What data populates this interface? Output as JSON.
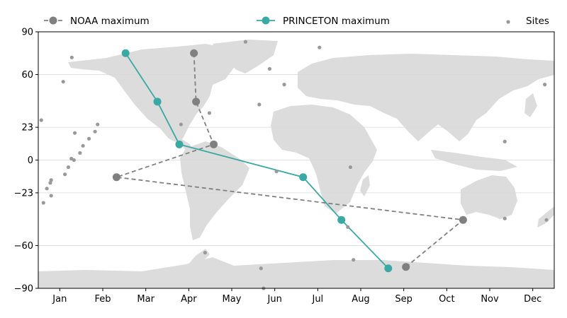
{
  "chart_data": {
    "type": "line",
    "xlim": [
      0,
      12
    ],
    "ylim": [
      -90,
      90
    ],
    "x_ticks": [
      {
        "value": 0.5,
        "label": "Jan"
      },
      {
        "value": 1.5,
        "label": "Feb"
      },
      {
        "value": 2.5,
        "label": "Mar"
      },
      {
        "value": 3.5,
        "label": "Apr"
      },
      {
        "value": 4.5,
        "label": "May"
      },
      {
        "value": 5.5,
        "label": "Jun"
      },
      {
        "value": 6.5,
        "label": "Jul"
      },
      {
        "value": 7.5,
        "label": "Aug"
      },
      {
        "value": 8.5,
        "label": "Sep"
      },
      {
        "value": 9.5,
        "label": "Oct"
      },
      {
        "value": 10.5,
        "label": "Nov"
      },
      {
        "value": 11.5,
        "label": "Dec"
      }
    ],
    "y_ticks": [
      {
        "value": 90,
        "label": "90"
      },
      {
        "value": 60,
        "label": "60"
      },
      {
        "value": 23,
        "label": "23"
      },
      {
        "value": 0,
        "label": "0"
      },
      {
        "value": -23,
        "label": "−23"
      },
      {
        "value": -60,
        "label": "−60"
      },
      {
        "value": -90,
        "label": "−90"
      }
    ],
    "grid": {
      "y": true,
      "x": false
    },
    "background": "world map (land masses in light gray)",
    "legend": {
      "placement": "top"
    },
    "series": [
      {
        "name": "NOAA maximum",
        "color": "#808080",
        "style": "dashed",
        "marker": "circle",
        "points": [
          {
            "x": 3.62,
            "y": 75
          },
          {
            "x": 3.67,
            "y": 41
          },
          {
            "x": 4.08,
            "y": 11
          },
          {
            "x": 1.82,
            "y": -12
          },
          {
            "x": 9.88,
            "y": -42
          },
          {
            "x": 8.55,
            "y": -75
          }
        ]
      },
      {
        "name": "PRINCETON maximum",
        "color": "#3aa8a3",
        "style": "solid",
        "marker": "circle",
        "points": [
          {
            "x": 2.03,
            "y": 75
          },
          {
            "x": 2.77,
            "y": 41
          },
          {
            "x": 3.28,
            "y": 11
          },
          {
            "x": 6.16,
            "y": -12
          },
          {
            "x": 7.05,
            "y": -42
          },
          {
            "x": 8.14,
            "y": -76
          }
        ]
      },
      {
        "name": "Sites",
        "color": "#999999",
        "style": "scatter",
        "marker": "dot",
        "points": [
          {
            "x": 0.78,
            "y": 72
          },
          {
            "x": 0.58,
            "y": 55
          },
          {
            "x": 0.07,
            "y": 28
          },
          {
            "x": 0.85,
            "y": 19
          },
          {
            "x": 1.38,
            "y": 25
          },
          {
            "x": 1.32,
            "y": 20
          },
          {
            "x": 1.18,
            "y": 15
          },
          {
            "x": 1.04,
            "y": 10
          },
          {
            "x": 0.97,
            "y": 5
          },
          {
            "x": 0.77,
            "y": 1
          },
          {
            "x": 0.83,
            "y": 0
          },
          {
            "x": 0.7,
            "y": -5
          },
          {
            "x": 0.62,
            "y": -10
          },
          {
            "x": 0.3,
            "y": -14
          },
          {
            "x": 0.28,
            "y": -16
          },
          {
            "x": 0.2,
            "y": -20
          },
          {
            "x": 0.3,
            "y": -25
          },
          {
            "x": 0.12,
            "y": -30
          },
          {
            "x": 3.98,
            "y": 33
          },
          {
            "x": 4.82,
            "y": 83
          },
          {
            "x": 5.38,
            "y": 64
          },
          {
            "x": 5.72,
            "y": 53
          },
          {
            "x": 5.14,
            "y": 39
          },
          {
            "x": 6.54,
            "y": 79
          },
          {
            "x": 5.54,
            "y": -8
          },
          {
            "x": 7.26,
            "y": -5
          },
          {
            "x": 7.2,
            "y": -47
          },
          {
            "x": 7.33,
            "y": -70
          },
          {
            "x": 3.32,
            "y": 25
          },
          {
            "x": 3.88,
            "y": -65
          },
          {
            "x": 5.18,
            "y": -76
          },
          {
            "x": 5.24,
            "y": -90
          },
          {
            "x": 10.85,
            "y": 13
          },
          {
            "x": 10.85,
            "y": -41
          },
          {
            "x": 11.78,
            "y": 53
          },
          {
            "x": 11.82,
            "y": -42
          }
        ]
      }
    ]
  }
}
